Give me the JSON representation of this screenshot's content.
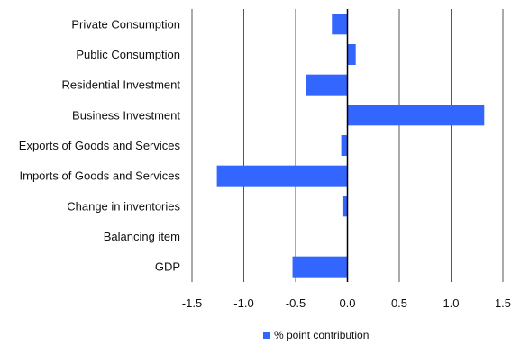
{
  "chart_data": {
    "type": "bar",
    "orientation": "horizontal",
    "categories": [
      "Private Consumption",
      "Public Consumption",
      "Residential Investment",
      "Business Investment",
      "Exports of Goods and Services",
      "Imports of Goods and Services",
      "Change in inventories",
      "Balancing item",
      "GDP"
    ],
    "series": [
      {
        "name": "% point contribution",
        "color": "#3366ff",
        "values": [
          -0.15,
          0.08,
          -0.4,
          1.32,
          -0.06,
          -1.26,
          -0.04,
          0.0,
          -0.53
        ]
      }
    ],
    "xlim": [
      -1.5,
      1.5
    ],
    "xticks": [
      "-1.5",
      "-1.0",
      "-0.5",
      "0.0",
      "0.5",
      "1.0",
      "1.5"
    ],
    "tick_values": [
      -1.5,
      -1.0,
      -0.5,
      0.0,
      0.5,
      1.0,
      1.5
    ],
    "grid": "vertical",
    "legend": "bottom-center",
    "title": "",
    "xlabel": "",
    "ylabel": ""
  }
}
